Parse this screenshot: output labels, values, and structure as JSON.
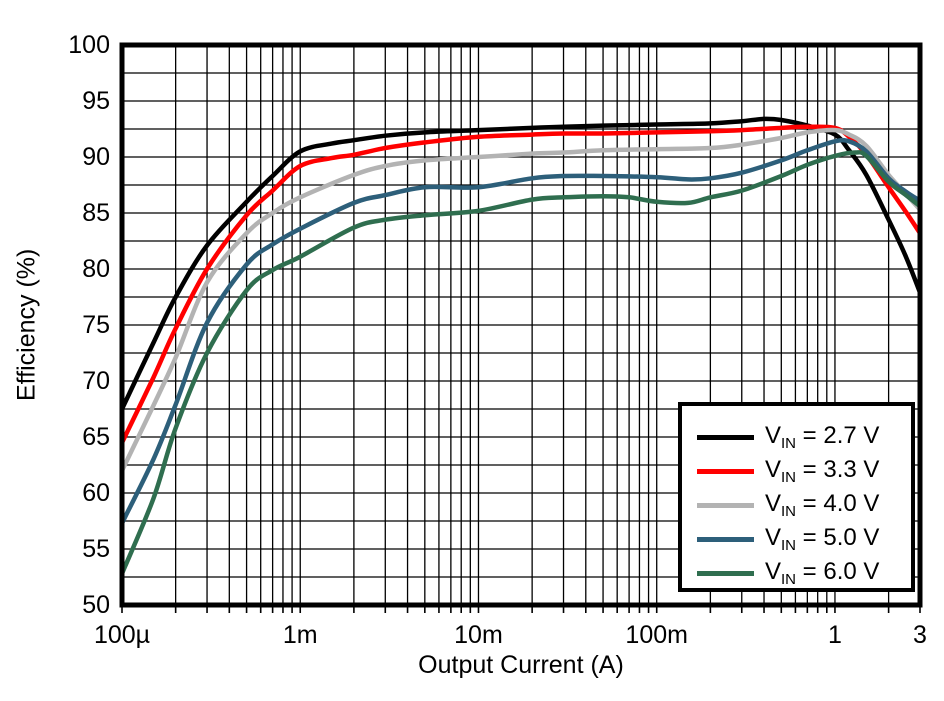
{
  "chart": {
    "title": "",
    "background_color": "#ffffff",
    "grid_color": "#000000",
    "border_color": "#000000"
  },
  "chart_data": {
    "type": "line",
    "title": "",
    "xlabel": "Output Current (A)",
    "ylabel": "Efficiency (%)",
    "x_scale": "log",
    "xlim": [
      0.0001,
      3
    ],
    "ylim": [
      50,
      100
    ],
    "grid": "minor grid on, black lines",
    "legend_position": "lower-right inside plot",
    "x_ticks": [
      {
        "value": 0.0001,
        "label": "100µ"
      },
      {
        "value": 0.001,
        "label": "1m"
      },
      {
        "value": 0.01,
        "label": "10m"
      },
      {
        "value": 0.1,
        "label": "100m"
      },
      {
        "value": 1,
        "label": "1"
      },
      {
        "value": 3,
        "label": "3"
      }
    ],
    "y_ticks": [
      {
        "value": 100,
        "label": "100"
      },
      {
        "value": 95,
        "label": "95"
      },
      {
        "value": 90,
        "label": "90"
      },
      {
        "value": 85,
        "label": "85"
      },
      {
        "value": 80,
        "label": "80"
      },
      {
        "value": 75,
        "label": "75"
      },
      {
        "value": 70,
        "label": "70"
      },
      {
        "value": 65,
        "label": "65"
      },
      {
        "value": 60,
        "label": "60"
      },
      {
        "value": 55,
        "label": "55"
      },
      {
        "value": 50,
        "label": "50"
      }
    ],
    "y_minor_step": 2.5,
    "series": [
      {
        "name": "VIN = 2.7 V",
        "legend_prefix": "V",
        "legend_sub": "IN",
        "legend_rest": " = 2.7 V",
        "color": "#000000",
        "points": [
          [
            0.0001,
            67.5
          ],
          [
            0.00015,
            73.4
          ],
          [
            0.0002,
            77.5
          ],
          [
            0.0003,
            82.1
          ],
          [
            0.0005,
            86.0
          ],
          [
            0.0007,
            88.3
          ],
          [
            0.001,
            90.5
          ],
          [
            0.0015,
            91.2
          ],
          [
            0.002,
            91.5
          ],
          [
            0.003,
            91.9
          ],
          [
            0.005,
            92.2
          ],
          [
            0.01,
            92.4
          ],
          [
            0.02,
            92.6
          ],
          [
            0.03,
            92.7
          ],
          [
            0.05,
            92.8
          ],
          [
            0.1,
            92.9
          ],
          [
            0.2,
            93.0
          ],
          [
            0.3,
            93.2
          ],
          [
            0.4,
            93.4
          ],
          [
            0.5,
            93.3
          ],
          [
            0.7,
            92.8
          ],
          [
            1.0,
            92.0
          ],
          [
            1.2,
            90.6
          ],
          [
            1.5,
            88.4
          ],
          [
            2.0,
            84.4
          ],
          [
            2.5,
            81.1
          ],
          [
            3.0,
            77.9
          ]
        ]
      },
      {
        "name": "VIN = 3.3 V",
        "legend_prefix": "V",
        "legend_sub": "IN",
        "legend_rest": " = 3.3 V",
        "color": "#ff0000",
        "points": [
          [
            0.0001,
            64.5
          ],
          [
            0.00015,
            70.3
          ],
          [
            0.0002,
            74.7
          ],
          [
            0.0003,
            80.0
          ],
          [
            0.0005,
            84.8
          ],
          [
            0.0007,
            87.0
          ],
          [
            0.001,
            89.2
          ],
          [
            0.0015,
            89.9
          ],
          [
            0.002,
            90.2
          ],
          [
            0.003,
            90.8
          ],
          [
            0.005,
            91.3
          ],
          [
            0.01,
            91.8
          ],
          [
            0.02,
            92.0
          ],
          [
            0.03,
            92.1
          ],
          [
            0.05,
            92.1
          ],
          [
            0.1,
            92.2
          ],
          [
            0.2,
            92.3
          ],
          [
            0.3,
            92.4
          ],
          [
            0.5,
            92.6
          ],
          [
            0.7,
            92.7
          ],
          [
            1.0,
            92.6
          ],
          [
            1.2,
            91.8
          ],
          [
            1.5,
            90.2
          ],
          [
            2.0,
            87.3
          ],
          [
            2.5,
            85.1
          ],
          [
            3.0,
            83.2
          ]
        ]
      },
      {
        "name": "VIN = 4.0 V",
        "legend_prefix": "V",
        "legend_sub": "IN",
        "legend_rest": " = 4.0 V",
        "color": "#b3b3b3",
        "points": [
          [
            0.0001,
            62.0
          ],
          [
            0.00015,
            67.8
          ],
          [
            0.0002,
            72.1
          ],
          [
            0.0003,
            78.8
          ],
          [
            0.0005,
            83.2
          ],
          [
            0.0007,
            85.0
          ],
          [
            0.001,
            86.4
          ],
          [
            0.002,
            88.4
          ],
          [
            0.003,
            89.2
          ],
          [
            0.005,
            89.7
          ],
          [
            0.01,
            90.0
          ],
          [
            0.02,
            90.3
          ],
          [
            0.03,
            90.4
          ],
          [
            0.05,
            90.6
          ],
          [
            0.1,
            90.7
          ],
          [
            0.2,
            90.8
          ],
          [
            0.3,
            91.1
          ],
          [
            0.5,
            91.7
          ],
          [
            0.7,
            92.2
          ],
          [
            1.0,
            92.4
          ],
          [
            1.2,
            92.0
          ],
          [
            1.5,
            91.0
          ],
          [
            2.0,
            88.4
          ],
          [
            2.5,
            86.7
          ],
          [
            3.0,
            85.3
          ]
        ]
      },
      {
        "name": "VIN = 5.0 V",
        "legend_prefix": "V",
        "legend_sub": "IN",
        "legend_rest": " = 5.0 V",
        "color": "#2d5f7a",
        "points": [
          [
            0.0001,
            57.3
          ],
          [
            0.00015,
            63.0
          ],
          [
            0.0002,
            67.9
          ],
          [
            0.0003,
            75.2
          ],
          [
            0.0005,
            80.4
          ],
          [
            0.0007,
            82.2
          ],
          [
            0.001,
            83.6
          ],
          [
            0.002,
            85.9
          ],
          [
            0.003,
            86.6
          ],
          [
            0.005,
            87.3
          ],
          [
            0.01,
            87.3
          ],
          [
            0.02,
            88.1
          ],
          [
            0.03,
            88.3
          ],
          [
            0.05,
            88.3
          ],
          [
            0.1,
            88.2
          ],
          [
            0.15,
            88.0
          ],
          [
            0.2,
            88.1
          ],
          [
            0.3,
            88.6
          ],
          [
            0.5,
            89.7
          ],
          [
            0.7,
            90.6
          ],
          [
            1.0,
            91.4
          ],
          [
            1.2,
            91.4
          ],
          [
            1.5,
            90.5
          ],
          [
            2.0,
            88.1
          ],
          [
            2.5,
            86.9
          ],
          [
            3.0,
            86.1
          ]
        ]
      },
      {
        "name": "VIN = 6.0 V",
        "legend_prefix": "V",
        "legend_sub": "IN",
        "legend_rest": " = 6.0 V",
        "color": "#2f6e4f",
        "points": [
          [
            0.0001,
            52.8
          ],
          [
            0.00015,
            59.5
          ],
          [
            0.0002,
            65.8
          ],
          [
            0.0003,
            72.5
          ],
          [
            0.0005,
            78.1
          ],
          [
            0.0007,
            79.9
          ],
          [
            0.001,
            81.1
          ],
          [
            0.002,
            83.7
          ],
          [
            0.003,
            84.4
          ],
          [
            0.005,
            84.8
          ],
          [
            0.01,
            85.2
          ],
          [
            0.02,
            86.2
          ],
          [
            0.03,
            86.4
          ],
          [
            0.05,
            86.5
          ],
          [
            0.07,
            86.4
          ],
          [
            0.1,
            86.0
          ],
          [
            0.15,
            85.9
          ],
          [
            0.2,
            86.4
          ],
          [
            0.3,
            87.0
          ],
          [
            0.5,
            88.3
          ],
          [
            0.7,
            89.3
          ],
          [
            1.0,
            90.1
          ],
          [
            1.3,
            90.4
          ],
          [
            1.5,
            90.1
          ],
          [
            2.0,
            87.8
          ],
          [
            2.5,
            86.6
          ],
          [
            3.0,
            85.6
          ]
        ]
      }
    ]
  }
}
